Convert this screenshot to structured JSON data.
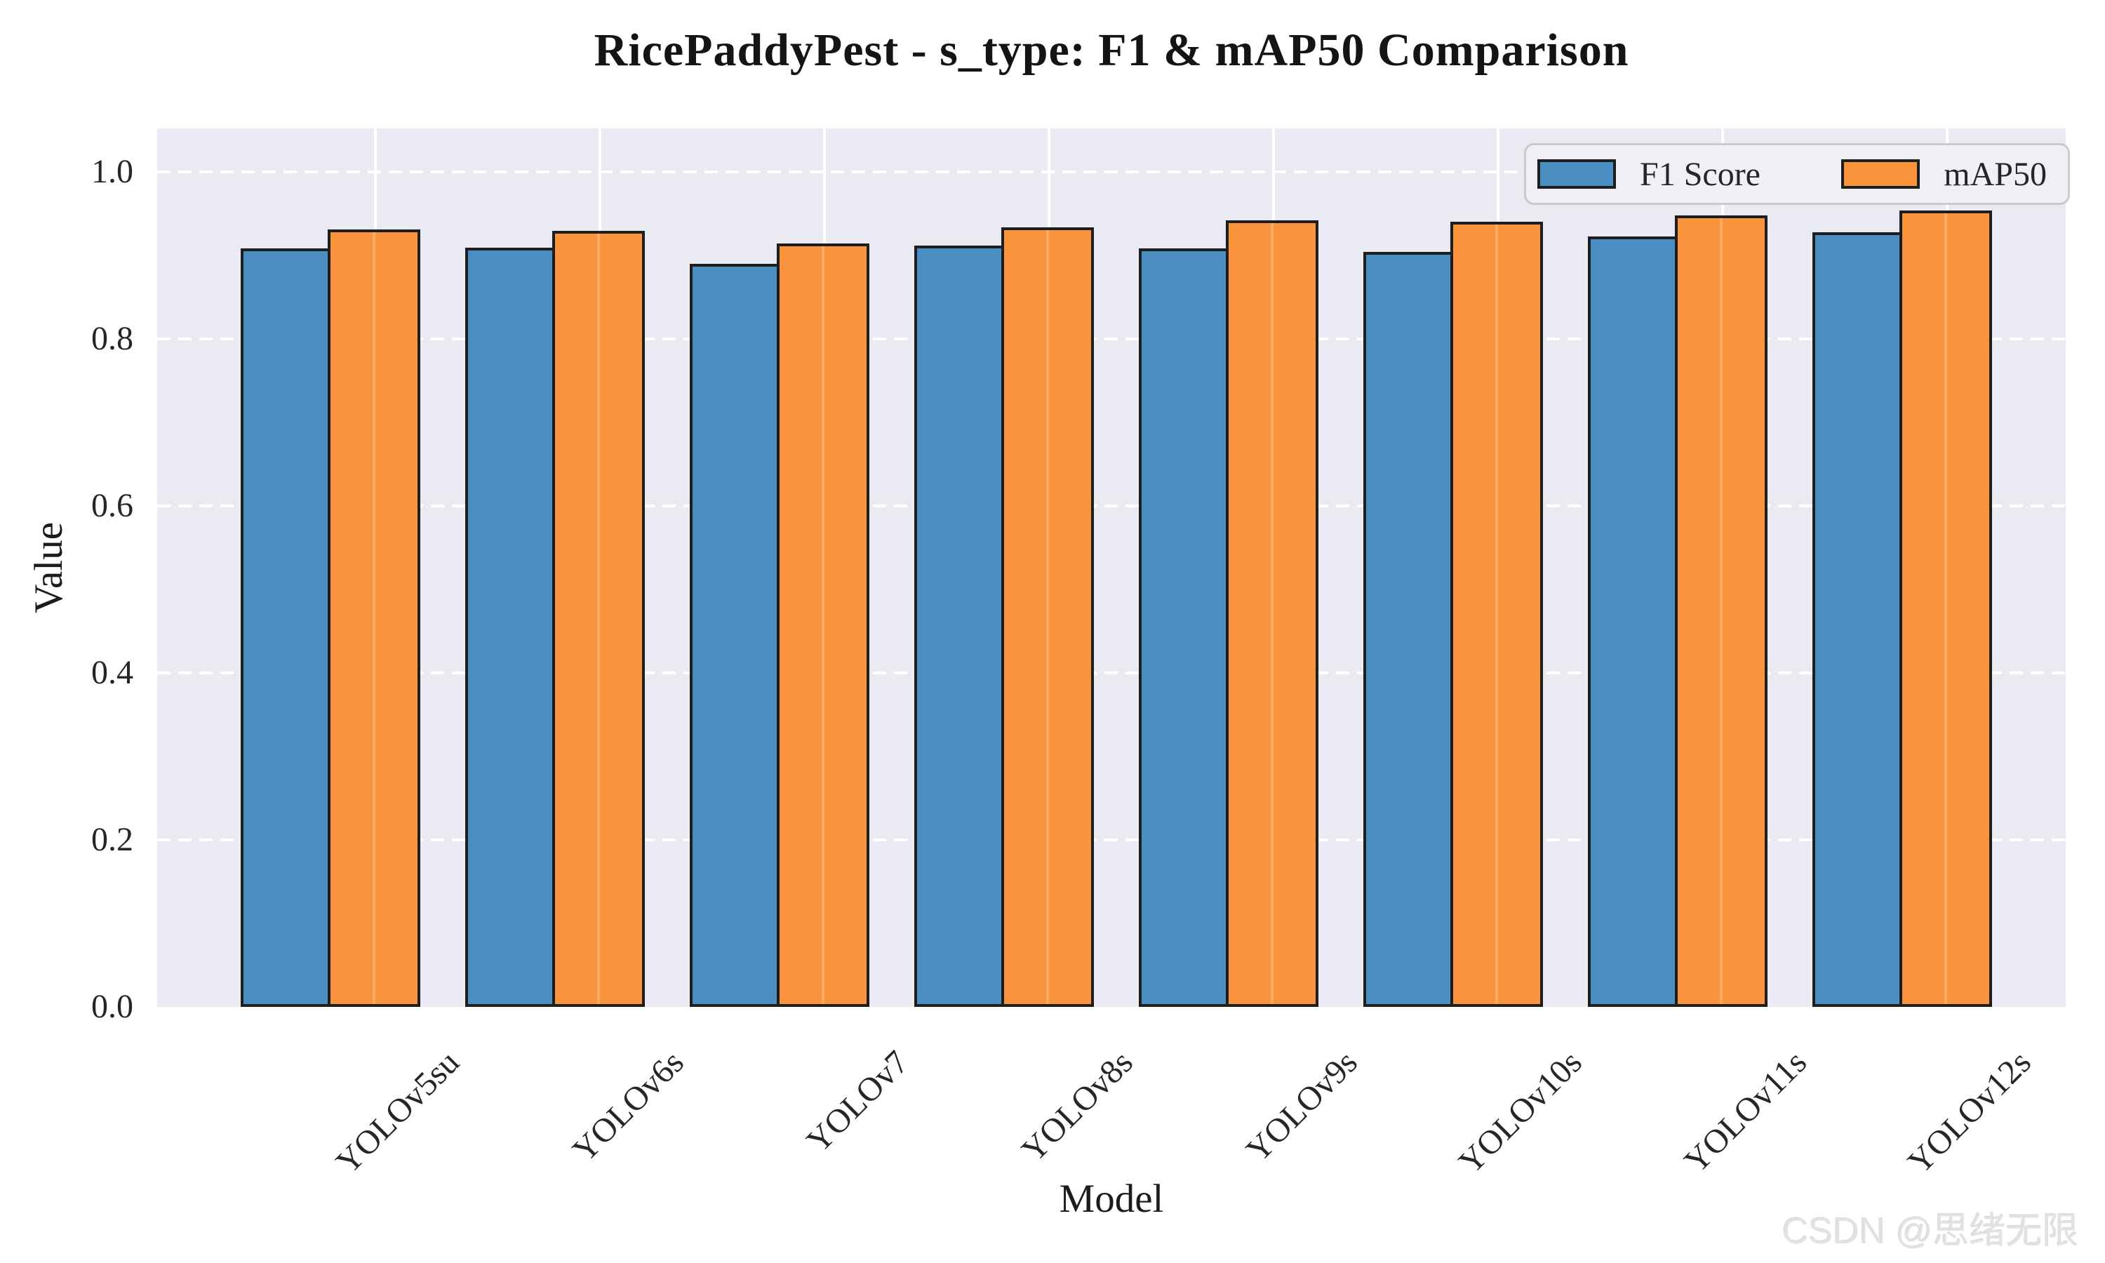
{
  "chart_data": {
    "type": "bar",
    "title": "RicePaddyPest - s_type: F1 & mAP50 Comparison",
    "xlabel": "Model",
    "ylabel": "Value",
    "categories": [
      "YOLOv5su",
      "YOLOv6s",
      "YOLOv7",
      "YOLOv8s",
      "YOLOv9s",
      "YOLOv10s",
      "YOLOv11s",
      "YOLOv12s"
    ],
    "series": [
      {
        "name": "F1 Score",
        "color": "#4A8EC2",
        "edge_color": "#1e1e1e",
        "values": [
          0.908,
          0.909,
          0.89,
          0.912,
          0.908,
          0.904,
          0.923,
          0.928
        ]
      },
      {
        "name": "mAP50",
        "color": "#FA943C",
        "edge_color": "#1e1e1e",
        "values": [
          0.931,
          0.929,
          0.914,
          0.934,
          0.942,
          0.94,
          0.948,
          0.954
        ]
      }
    ],
    "yticks": [
      0.0,
      0.2,
      0.4,
      0.6,
      0.8,
      1.0
    ],
    "ytick_labels": [
      "0.0",
      "0.2",
      "0.4",
      "0.6",
      "0.8",
      "1.0"
    ],
    "ylim": [
      0,
      1.052
    ],
    "grid": true,
    "panel_color": "#EAEAF2",
    "gridline_color": "#FFFFFF",
    "legend_position": "upper right"
  },
  "watermark": {
    "text": "CSDN @思绪无限",
    "color": "#e2e2e4"
  }
}
